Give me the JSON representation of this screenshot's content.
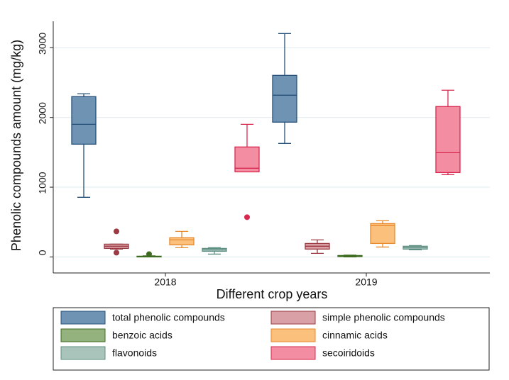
{
  "chart_data": {
    "type": "box",
    "x_label": "Different crop years",
    "y_label": "Phenolic compounds amount (mg/kg)",
    "categories": [
      "2018",
      "2019"
    ],
    "ylim": [
      -230,
      3380
    ],
    "yticks": [
      0,
      1000,
      2000,
      3000
    ],
    "grid": true,
    "legend": "bottom",
    "series": [
      {
        "name": "total phenolic compounds",
        "color": "#6f93b2",
        "stroke": "#24507a",
        "min": [
          855,
          1628
        ],
        "q1": [
          1617,
          1933
        ],
        "median": [
          1902,
          2319
        ],
        "q3": [
          2299,
          2604
        ],
        "max": [
          2340,
          3204
        ],
        "outliers": [
          [],
          []
        ]
      },
      {
        "name": "simple phenolic compounds",
        "color": "#d9a1a5",
        "stroke": "#9b3a42",
        "min": [
          112,
          51
        ],
        "q1": [
          122,
          112
        ],
        "median": [
          153,
          153
        ],
        "q3": [
          183,
          193
        ],
        "max": [
          183,
          244
        ],
        "outliers": [
          [
            366,
            61
          ],
          []
        ]
      },
      {
        "name": "benzoic acids",
        "color": "#93b27e",
        "stroke": "#3d6b1f",
        "min": [
          0,
          0
        ],
        "q1": [
          2,
          5
        ],
        "median": [
          5,
          10
        ],
        "q3": [
          10,
          20
        ],
        "max": [
          15,
          25
        ],
        "outliers": [
          [
            40
          ],
          []
        ]
      },
      {
        "name": "cinnamic acids",
        "color": "#fbc07c",
        "stroke": "#e8892b",
        "min": [
          132,
          142
        ],
        "q1": [
          173,
          193
        ],
        "median": [
          244,
          448
        ],
        "q3": [
          275,
          478
        ],
        "max": [
          366,
          519
        ],
        "outliers": [
          [],
          []
        ]
      },
      {
        "name": "flavonoids",
        "color": "#a8c4bb",
        "stroke": "#5f8f82",
        "min": [
          40,
          102
        ],
        "q1": [
          81,
          112
        ],
        "median": [
          102,
          132
        ],
        "q3": [
          122,
          153
        ],
        "max": [
          132,
          163
        ],
        "outliers": [
          [],
          []
        ]
      },
      {
        "name": "secoiridoids",
        "color": "#f38ea2",
        "stroke": "#d8284f",
        "min": [
          1220,
          1180
        ],
        "q1": [
          1220,
          1210
        ],
        "median": [
          1272,
          1495
        ],
        "q3": [
          1577,
          2157
        ],
        "max": [
          1902,
          2391
        ],
        "outliers": [
          [
            570
          ],
          []
        ]
      }
    ]
  }
}
